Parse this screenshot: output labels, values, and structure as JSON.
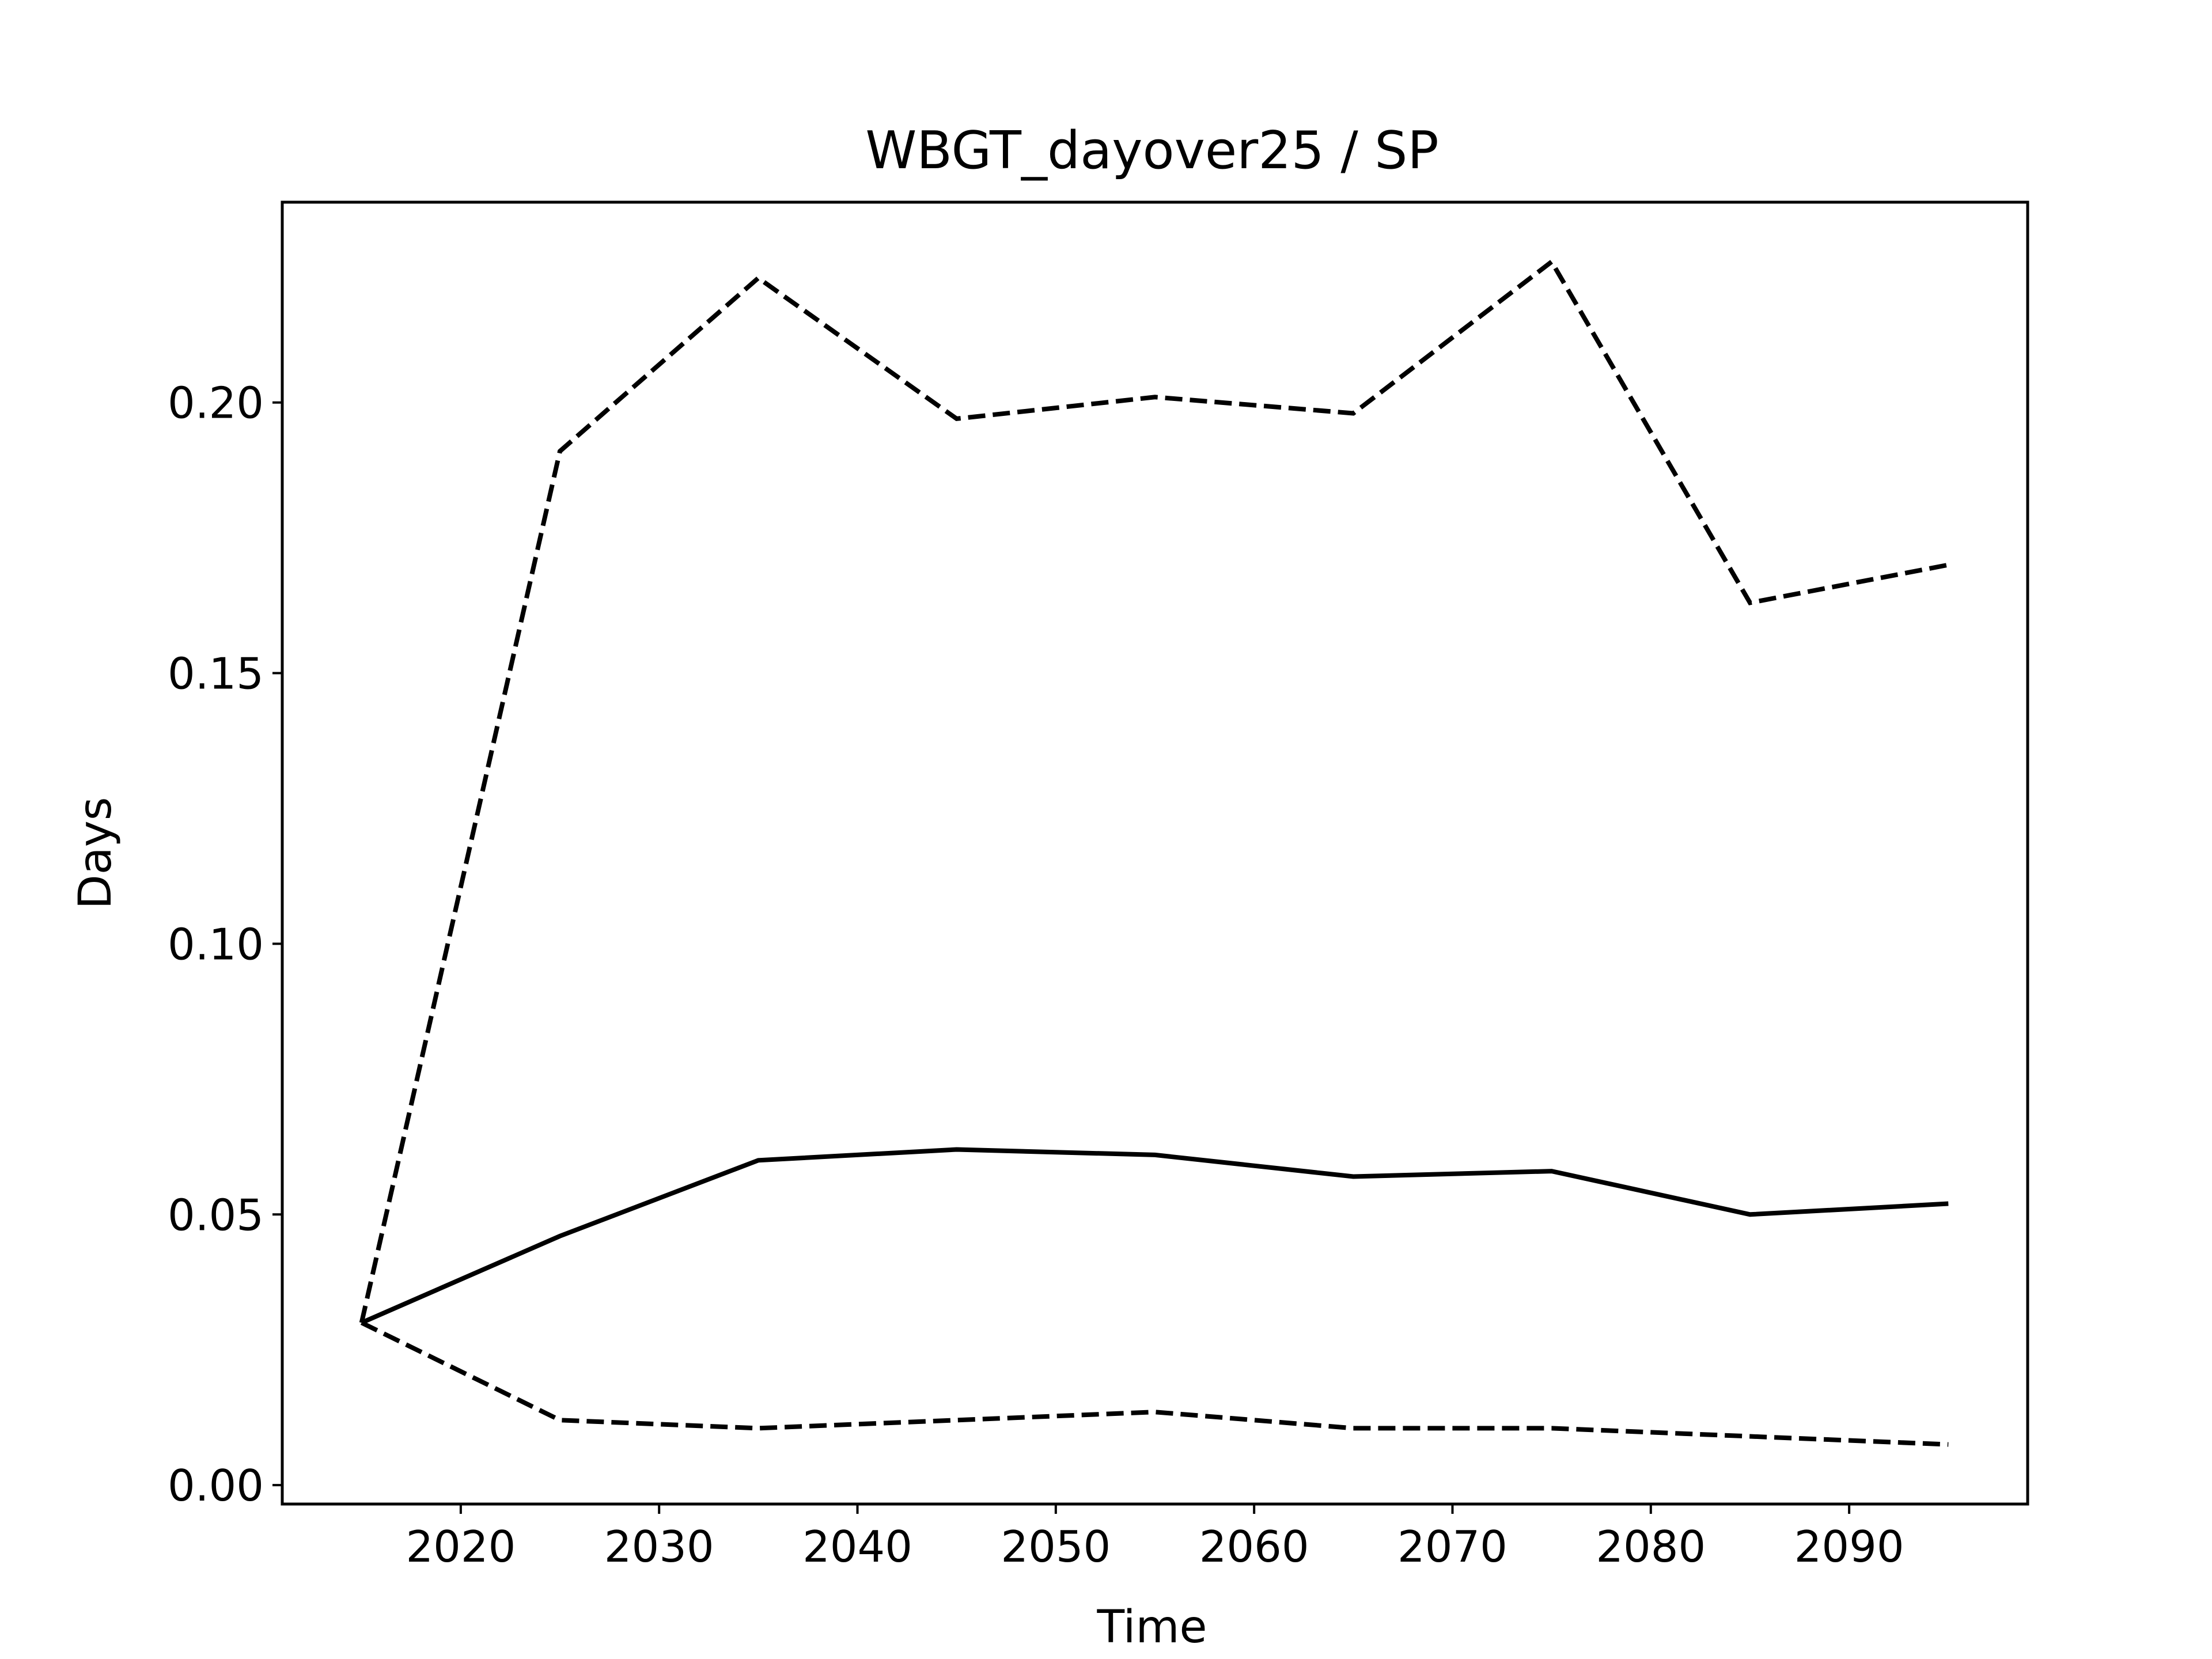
{
  "chart_data": {
    "type": "line",
    "title": "WBGT_dayover25 / SP",
    "xlabel": "Time",
    "ylabel": "Days",
    "x": [
      2015,
      2025,
      2035,
      2045,
      2055,
      2065,
      2075,
      2085,
      2095
    ],
    "series": [
      {
        "line_style": "solid",
        "color": "#000000",
        "values": [
          0.03,
          0.046,
          0.06,
          0.062,
          0.061,
          0.057,
          0.058,
          0.05,
          0.052
        ]
      },
      {
        "line_style": "dashed",
        "color": "#000000",
        "values": [
          0.03,
          0.191,
          0.223,
          0.197,
          0.201,
          0.198,
          0.226,
          0.163,
          0.17
        ]
      },
      {
        "line_style": "dashed",
        "color": "#000000",
        "values": [
          0.03,
          0.012,
          0.0105,
          0.012,
          0.0135,
          0.0105,
          0.0105,
          0.009,
          0.0075
        ]
      }
    ],
    "xlim": [
      2011,
      2099
    ],
    "ylim": [
      -0.0035,
      0.237
    ],
    "xticks": [
      2020,
      2030,
      2040,
      2050,
      2060,
      2070,
      2080,
      2090
    ],
    "yticks": [
      0.0,
      0.05,
      0.1,
      0.15,
      0.2
    ],
    "ytick_labels": [
      "0.00",
      "0.05",
      "0.10",
      "0.15",
      "0.20"
    ],
    "grid": false,
    "legend": "none"
  }
}
